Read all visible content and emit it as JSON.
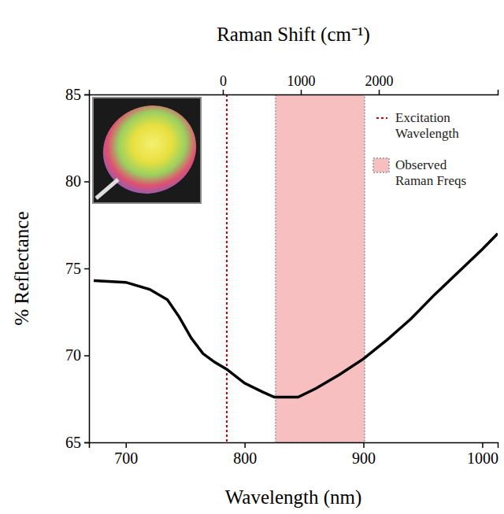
{
  "chart_data": {
    "type": "line",
    "xlabel": "Wavelength (nm)",
    "ylabel": "% Reflectance",
    "x2label": "Raman Shift (cm⁻¹)",
    "xlim": [
      669,
      1013
    ],
    "xticks": [
      700,
      800,
      900,
      1000
    ],
    "ylim": [
      65,
      85
    ],
    "yticks": [
      65,
      70,
      75,
      80,
      85
    ],
    "x2lim": [
      -1717,
      3525
    ],
    "x2ticks": [
      0,
      1000,
      2000
    ],
    "color": "#000000",
    "x": [
      673,
      700,
      720,
      735,
      745,
      755,
      765,
      775,
      785,
      800,
      815,
      825,
      845,
      860,
      880,
      900,
      920,
      940,
      960,
      980,
      1000,
      1013
    ],
    "values": [
      74.3,
      74.2,
      73.8,
      73.2,
      72.2,
      71.0,
      70.1,
      69.6,
      69.2,
      68.4,
      67.9,
      67.6,
      67.6,
      68.1,
      68.9,
      69.8,
      70.9,
      72.1,
      73.5,
      74.8,
      76.1,
      77.0
    ],
    "annotations": [
      {
        "type": "vline",
        "x": 785,
        "label": "Excitation Wavelength",
        "color": "#cc0000",
        "line_style": "dotted"
      },
      {
        "type": "span",
        "x": [
          826,
          901
        ],
        "label": "Observed Raman Freqs",
        "color": "#f7bfbf"
      }
    ],
    "legend": "upper right"
  }
}
